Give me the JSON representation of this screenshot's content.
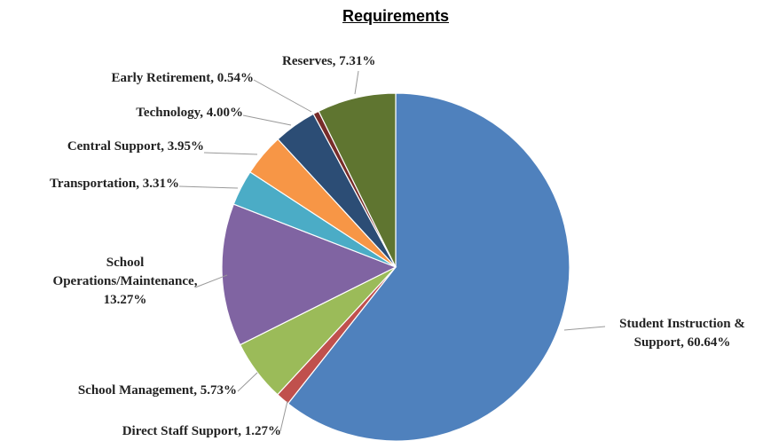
{
  "chart_data": {
    "type": "pie",
    "title": "Requirements",
    "categories": [
      "Student Instruction & Support",
      "Direct Staff Support",
      "School Management",
      "School Operations/Maintenance",
      "Transportation",
      "Central Support",
      "Technology",
      "Early Retirement",
      "Reserves"
    ],
    "values": [
      60.64,
      1.27,
      5.73,
      13.27,
      3.31,
      3.95,
      4.0,
      0.54,
      7.31
    ],
    "value_labels": [
      "60.64%",
      "1.27%",
      "5.73%",
      "13.27%",
      "3.31%",
      "3.95%",
      "4.00%",
      "0.54%",
      "7.31%"
    ],
    "colors": [
      "#4f81bd",
      "#c0504d",
      "#9bbb59",
      "#8064a2",
      "#4bacc6",
      "#f79646",
      "#2c4d75",
      "#772c2a",
      "#5f7530"
    ]
  }
}
